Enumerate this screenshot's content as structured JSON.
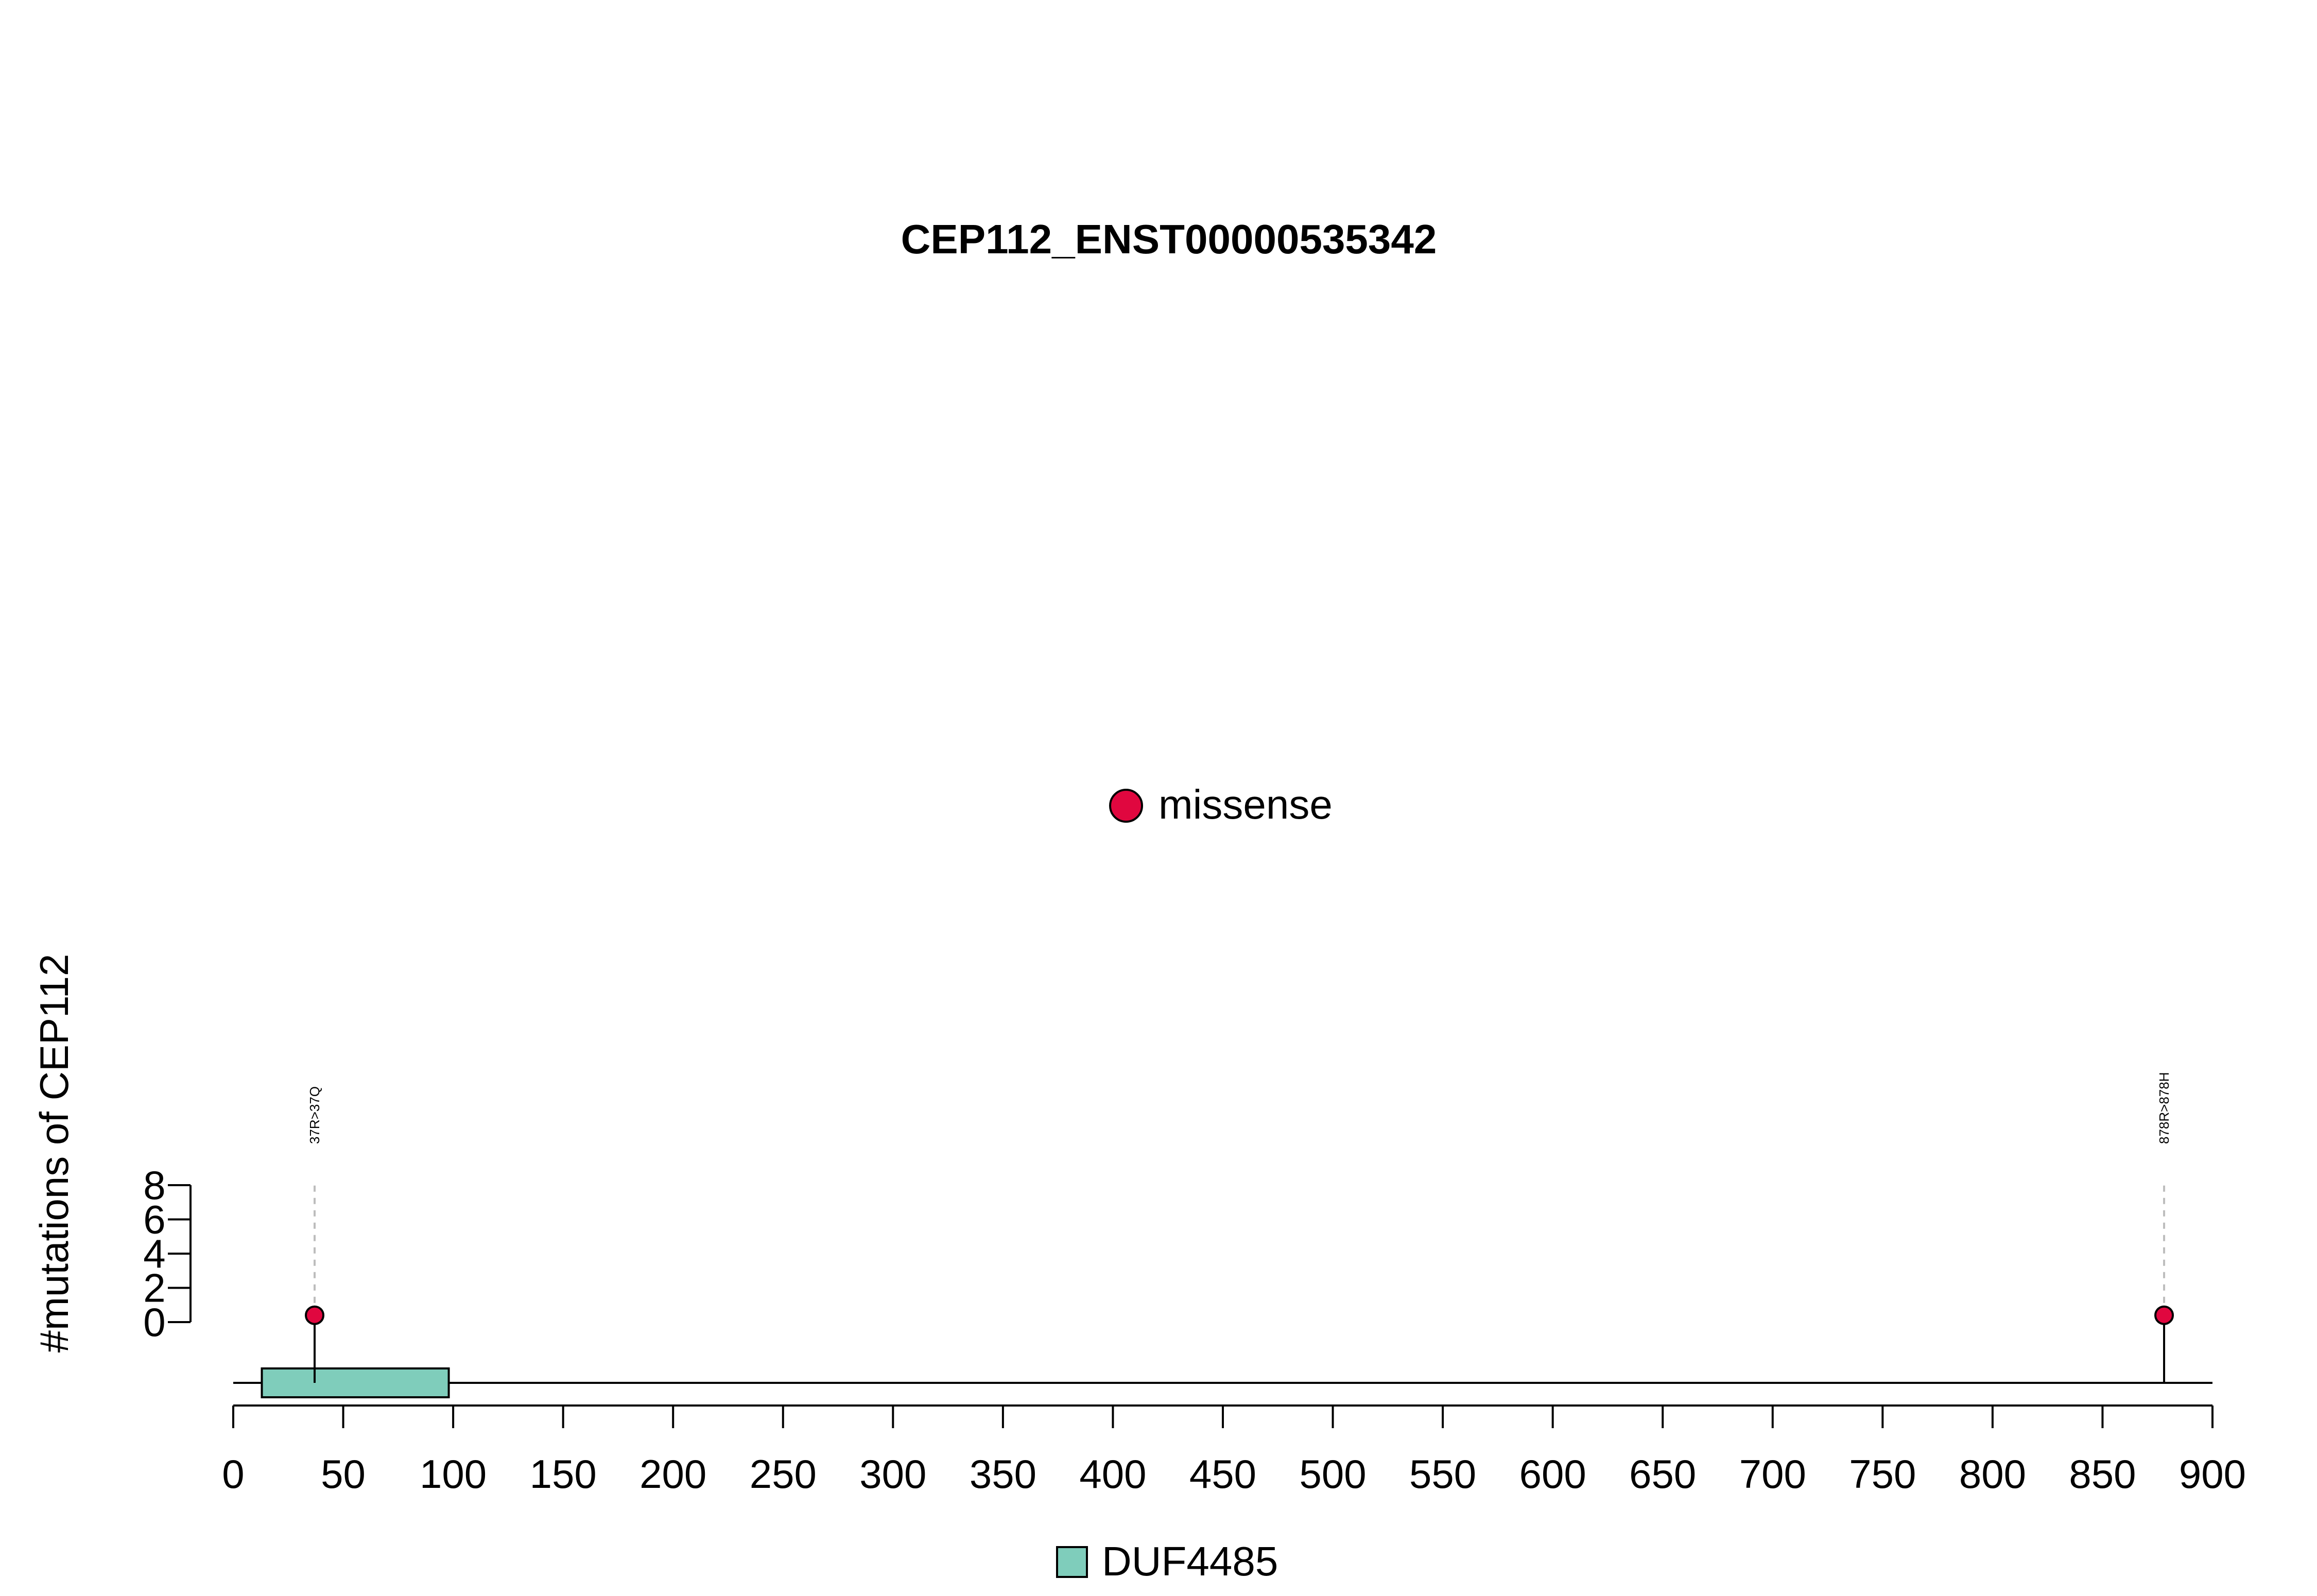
{
  "chart_data": {
    "type": "lollipop",
    "title": "CEP112_ENST00000535342",
    "ylabel": "#mutations of CEP112",
    "xlabel": "",
    "xlim": [
      0,
      900
    ],
    "x_ticks": [
      0,
      50,
      100,
      150,
      200,
      250,
      300,
      350,
      400,
      450,
      500,
      550,
      600,
      650,
      700,
      750,
      800,
      850,
      900
    ],
    "ylim": [
      0,
      8
    ],
    "y_ticks": [
      0,
      2,
      4,
      6,
      8
    ],
    "protein_length": 900,
    "mutations": [
      {
        "position": 37,
        "count": 1,
        "type": "missense",
        "label": "37R>37Q"
      },
      {
        "position": 878,
        "count": 1,
        "type": "missense",
        "label": "878R>878H"
      }
    ],
    "domains": [
      {
        "name": "DUF4485",
        "start": 13,
        "end": 98,
        "color": "#7fcdbb"
      }
    ],
    "legend_mutation_types": [
      {
        "name": "missense",
        "color": "#e0073f"
      }
    ],
    "legend_domains": [
      {
        "name": "DUF4485",
        "color": "#7fcdbb"
      }
    ],
    "grid": false
  }
}
